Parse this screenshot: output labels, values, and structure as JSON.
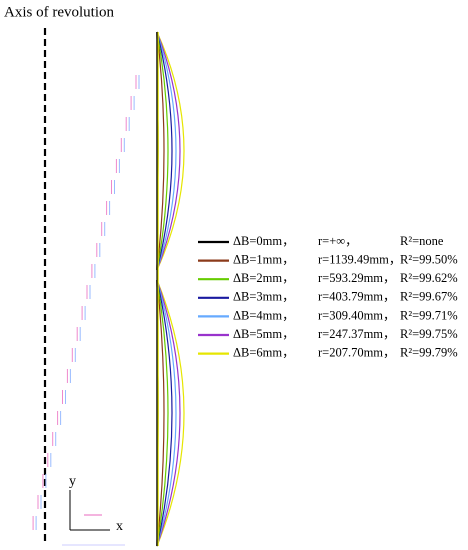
{
  "axis_label": "Axis of revolution",
  "coordinate_axes": {
    "y": "y",
    "x": "x"
  },
  "legend": [
    {
      "delta_b": "ΔB=0mm，",
      "r": "r=+∞，",
      "r2": "R²=none",
      "color": "#000000"
    },
    {
      "delta_b": "ΔB=1mm，",
      "r": "r=1139.49mm，",
      "r2": "R²=99.50%",
      "color": "#8b3a1a"
    },
    {
      "delta_b": "ΔB=2mm，",
      "r": "r=593.29mm，",
      "r2": "R²=99.62%",
      "color": "#66cc00"
    },
    {
      "delta_b": "ΔB=3mm，",
      "r": "r=403.79mm，",
      "r2": "R²=99.67%",
      "color": "#1a1aa0"
    },
    {
      "delta_b": "ΔB=4mm，",
      "r": "r=309.40mm，",
      "r2": "R²=99.71%",
      "color": "#66aaff"
    },
    {
      "delta_b": "ΔB=5mm，",
      "r": "r=247.37mm，",
      "r2": "R²=99.75%",
      "color": "#9933cc"
    },
    {
      "delta_b": "ΔB=6mm，",
      "r": "r=207.70mm，",
      "r2": "R²=99.79%",
      "color": "#e6e600"
    }
  ]
}
